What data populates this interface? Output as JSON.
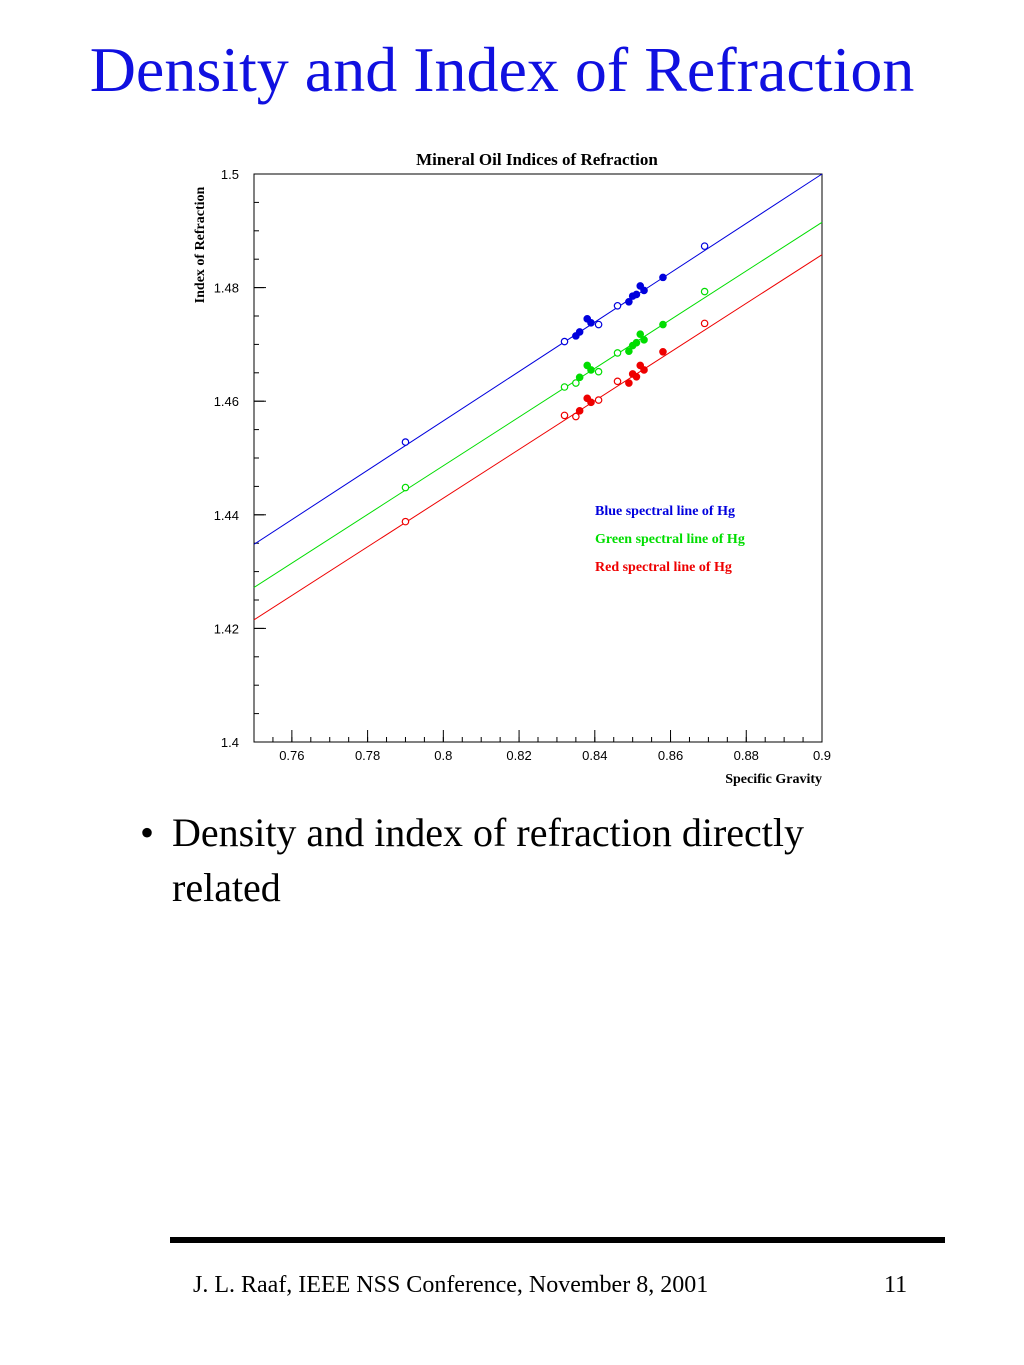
{
  "slide": {
    "title": "Density and Index of Refraction",
    "bullet": "Density and index of refraction directly related",
    "bullet_marker": "•",
    "footer": "J. L. Raaf, IEEE NSS Conference, November 8, 2001",
    "page_number": "11"
  },
  "chart_data": {
    "type": "scatter",
    "title": "Mineral Oil Indices of Refraction",
    "xlabel": "Specific Gravity",
    "ylabel": "Index of Refraction",
    "xlim": [
      0.75,
      0.9
    ],
    "ylim": [
      1.4,
      1.5
    ],
    "x_ticks": [
      "0.76",
      "0.78",
      "0.8",
      "0.82",
      "0.84",
      "0.86",
      "0.88",
      "0.9"
    ],
    "y_ticks": [
      "1.4",
      "1.42",
      "1.44",
      "1.46",
      "1.48",
      "1.5"
    ],
    "grid": false,
    "legend_position": "center-right",
    "series": [
      {
        "name": "Blue spectral line of Hg",
        "color": "#0000dd",
        "fit": [
          [
            0.75,
            1.4348
          ],
          [
            0.9,
            1.5
          ]
        ],
        "points": [
          {
            "x": 0.79,
            "y": 1.4528,
            "filled": false
          },
          {
            "x": 0.832,
            "y": 1.4705,
            "filled": false
          },
          {
            "x": 0.835,
            "y": 1.4715,
            "filled": true
          },
          {
            "x": 0.836,
            "y": 1.4722,
            "filled": true
          },
          {
            "x": 0.838,
            "y": 1.4745,
            "filled": true
          },
          {
            "x": 0.839,
            "y": 1.4738,
            "filled": true
          },
          {
            "x": 0.841,
            "y": 1.4735,
            "filled": false
          },
          {
            "x": 0.846,
            "y": 1.4768,
            "filled": false
          },
          {
            "x": 0.849,
            "y": 1.4775,
            "filled": true
          },
          {
            "x": 0.85,
            "y": 1.4785,
            "filled": true
          },
          {
            "x": 0.851,
            "y": 1.4788,
            "filled": true
          },
          {
            "x": 0.852,
            "y": 1.4803,
            "filled": true
          },
          {
            "x": 0.853,
            "y": 1.4795,
            "filled": true
          },
          {
            "x": 0.858,
            "y": 1.4818,
            "filled": true
          },
          {
            "x": 0.869,
            "y": 1.4873,
            "filled": false
          }
        ]
      },
      {
        "name": "Green spectral line of Hg",
        "color": "#00dd00",
        "fit": [
          [
            0.75,
            1.4272
          ],
          [
            0.9,
            1.4915
          ]
        ],
        "points": [
          {
            "x": 0.79,
            "y": 1.4448,
            "filled": false
          },
          {
            "x": 0.832,
            "y": 1.4625,
            "filled": false
          },
          {
            "x": 0.835,
            "y": 1.4632,
            "filled": false
          },
          {
            "x": 0.836,
            "y": 1.4642,
            "filled": true
          },
          {
            "x": 0.838,
            "y": 1.4663,
            "filled": true
          },
          {
            "x": 0.839,
            "y": 1.4655,
            "filled": true
          },
          {
            "x": 0.841,
            "y": 1.4652,
            "filled": false
          },
          {
            "x": 0.846,
            "y": 1.4685,
            "filled": false
          },
          {
            "x": 0.849,
            "y": 1.4688,
            "filled": true
          },
          {
            "x": 0.85,
            "y": 1.4698,
            "filled": true
          },
          {
            "x": 0.851,
            "y": 1.4703,
            "filled": true
          },
          {
            "x": 0.852,
            "y": 1.4718,
            "filled": true
          },
          {
            "x": 0.853,
            "y": 1.4708,
            "filled": true
          },
          {
            "x": 0.858,
            "y": 1.4735,
            "filled": true
          },
          {
            "x": 0.869,
            "y": 1.4793,
            "filled": false
          }
        ]
      },
      {
        "name": "Red spectral line of Hg",
        "color": "#ee0000",
        "fit": [
          [
            0.75,
            1.4215
          ],
          [
            0.9,
            1.4858
          ]
        ],
        "points": [
          {
            "x": 0.79,
            "y": 1.4388,
            "filled": false
          },
          {
            "x": 0.832,
            "y": 1.4575,
            "filled": false
          },
          {
            "x": 0.835,
            "y": 1.4573,
            "filled": false
          },
          {
            "x": 0.836,
            "y": 1.4583,
            "filled": true
          },
          {
            "x": 0.838,
            "y": 1.4605,
            "filled": true
          },
          {
            "x": 0.839,
            "y": 1.4598,
            "filled": true
          },
          {
            "x": 0.841,
            "y": 1.4602,
            "filled": false
          },
          {
            "x": 0.846,
            "y": 1.4635,
            "filled": false
          },
          {
            "x": 0.849,
            "y": 1.4632,
            "filled": true
          },
          {
            "x": 0.85,
            "y": 1.4648,
            "filled": true
          },
          {
            "x": 0.851,
            "y": 1.4643,
            "filled": true
          },
          {
            "x": 0.852,
            "y": 1.4663,
            "filled": true
          },
          {
            "x": 0.853,
            "y": 1.4655,
            "filled": true
          },
          {
            "x": 0.858,
            "y": 1.4687,
            "filled": true
          },
          {
            "x": 0.869,
            "y": 1.4737,
            "filled": false
          }
        ]
      }
    ]
  }
}
